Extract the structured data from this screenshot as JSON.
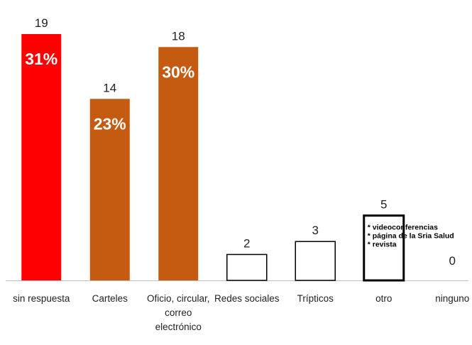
{
  "chart_data": {
    "type": "bar",
    "categories": [
      [
        "sin respuesta"
      ],
      [
        "Carteles"
      ],
      [
        "Oficio, circular,",
        "correo",
        "electrónico"
      ],
      [
        "Redes sociales"
      ],
      [
        "Trípticos"
      ],
      [
        "otro"
      ],
      [
        "ninguno"
      ]
    ],
    "values": [
      19,
      14,
      18,
      2,
      3,
      5,
      0
    ],
    "percent_labels": [
      "31%",
      "23%",
      "30%",
      "",
      "",
      "",
      ""
    ],
    "colors": [
      "#ff0000",
      "#c55a11",
      "#c55a11",
      "#ffffff",
      "#ffffff",
      "#ffffff",
      "#ffffff"
    ],
    "outlined": [
      false,
      false,
      false,
      true,
      true,
      true,
      true
    ],
    "annotation": {
      "category_index": 5,
      "lines": [
        "* videoconferencias",
        "* página de la Sria Salud",
        "* revista"
      ]
    },
    "ylim": [
      0,
      19
    ],
    "grid": false,
    "legend": "none",
    "title": "",
    "xlabel": "",
    "ylabel": ""
  }
}
